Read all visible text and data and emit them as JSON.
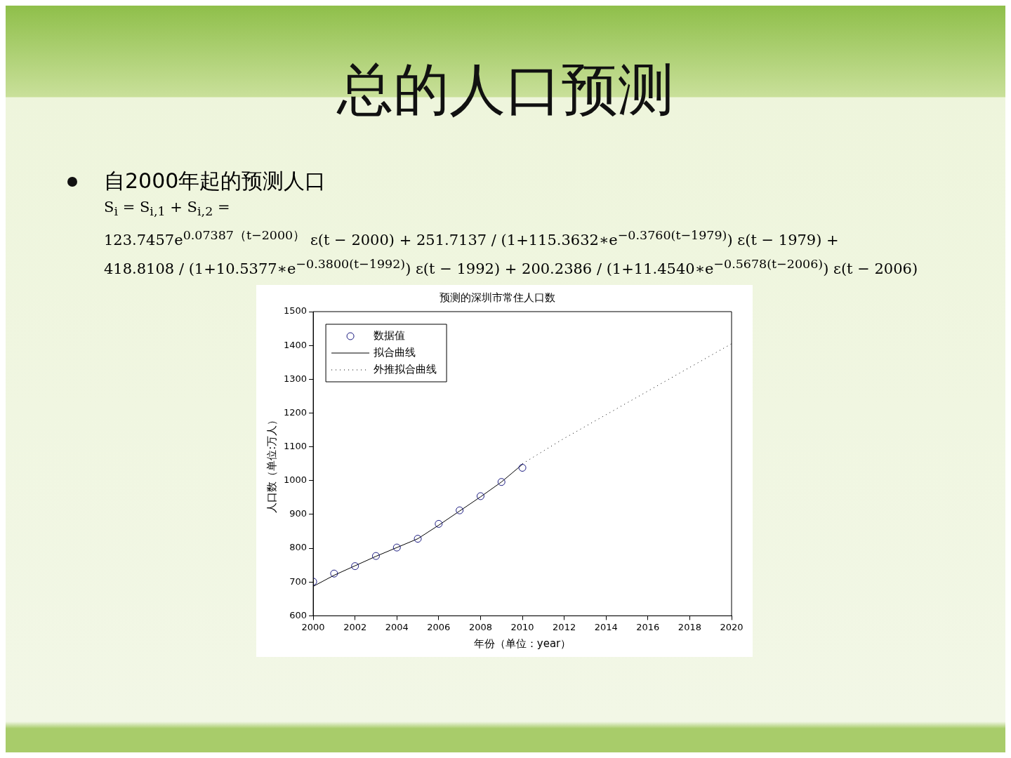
{
  "chart_data": {
    "type": "scatter",
    "title": "总的人口预测",
    "subtitle": "预测的深圳市常住人口数",
    "xlabel": "年份（单位：year）",
    "ylabel": "人口数（单位:万人）",
    "annotations": [
      "自2000年起的预测人口",
      "S$_{i}$ = S$_{i,1}$ + S$_{i,2}$ =",
      "123.7457e$^{0.07387（t−2000）}$ ε(t − 2000) + 251.7137 / (1+115.3632∗e$^{−0.3760(t−1979)}$) ε(t − 1979) +",
      "418.8108 / (1+10.5377∗e$^{−0.3800(t−1992)}$) ε(t − 1992) + 200.2386 / (1+11.4540∗e$^{−0.5678(t−2006)}$) ε(t − 2006)"
    ],
    "series": [
      {
        "name": "数据值",
        "color": "#1a1a80",
        "marker": "circle",
        "x": [
          2000,
          2001,
          2002,
          2003,
          2004,
          2005,
          2006,
          2007,
          2008,
          2009,
          2010
        ],
        "values": [
          701,
          725,
          747,
          777,
          802,
          828,
          872,
          912,
          954,
          996,
          1038
        ]
      },
      {
        "name": "拟合曲线",
        "type": "line",
        "color": "#000000",
        "marker": "none",
        "line_style": "solid",
        "x": [
          2000,
          2001,
          2002,
          2003,
          2004,
          2005,
          2006,
          2007,
          2008,
          2009,
          2010
        ],
        "values": [
          687,
          720,
          748,
          776,
          802,
          828,
          868,
          910,
          952,
          996,
          1048
        ]
      },
      {
        "name": "外推拟合曲线",
        "type": "line",
        "color": "#000000",
        "marker": "none",
        "line_style": "dotted",
        "x": [
          2010,
          2012,
          2014,
          2016,
          2018,
          2020
        ],
        "values": [
          1050,
          1125,
          1195,
          1265,
          1335,
          1405
        ]
      }
    ],
    "xlim": [
      2000,
      2020
    ],
    "xticks": [
      2000,
      2002,
      2004,
      2006,
      2008,
      2010,
      2012,
      2014,
      2016,
      2018,
      2020
    ],
    "ylim": [
      600,
      1500
    ],
    "yticks": [
      600,
      700,
      800,
      900,
      1000,
      1100,
      1200,
      1300,
      1400,
      1500
    ],
    "grid": false,
    "legend": "top left"
  }
}
